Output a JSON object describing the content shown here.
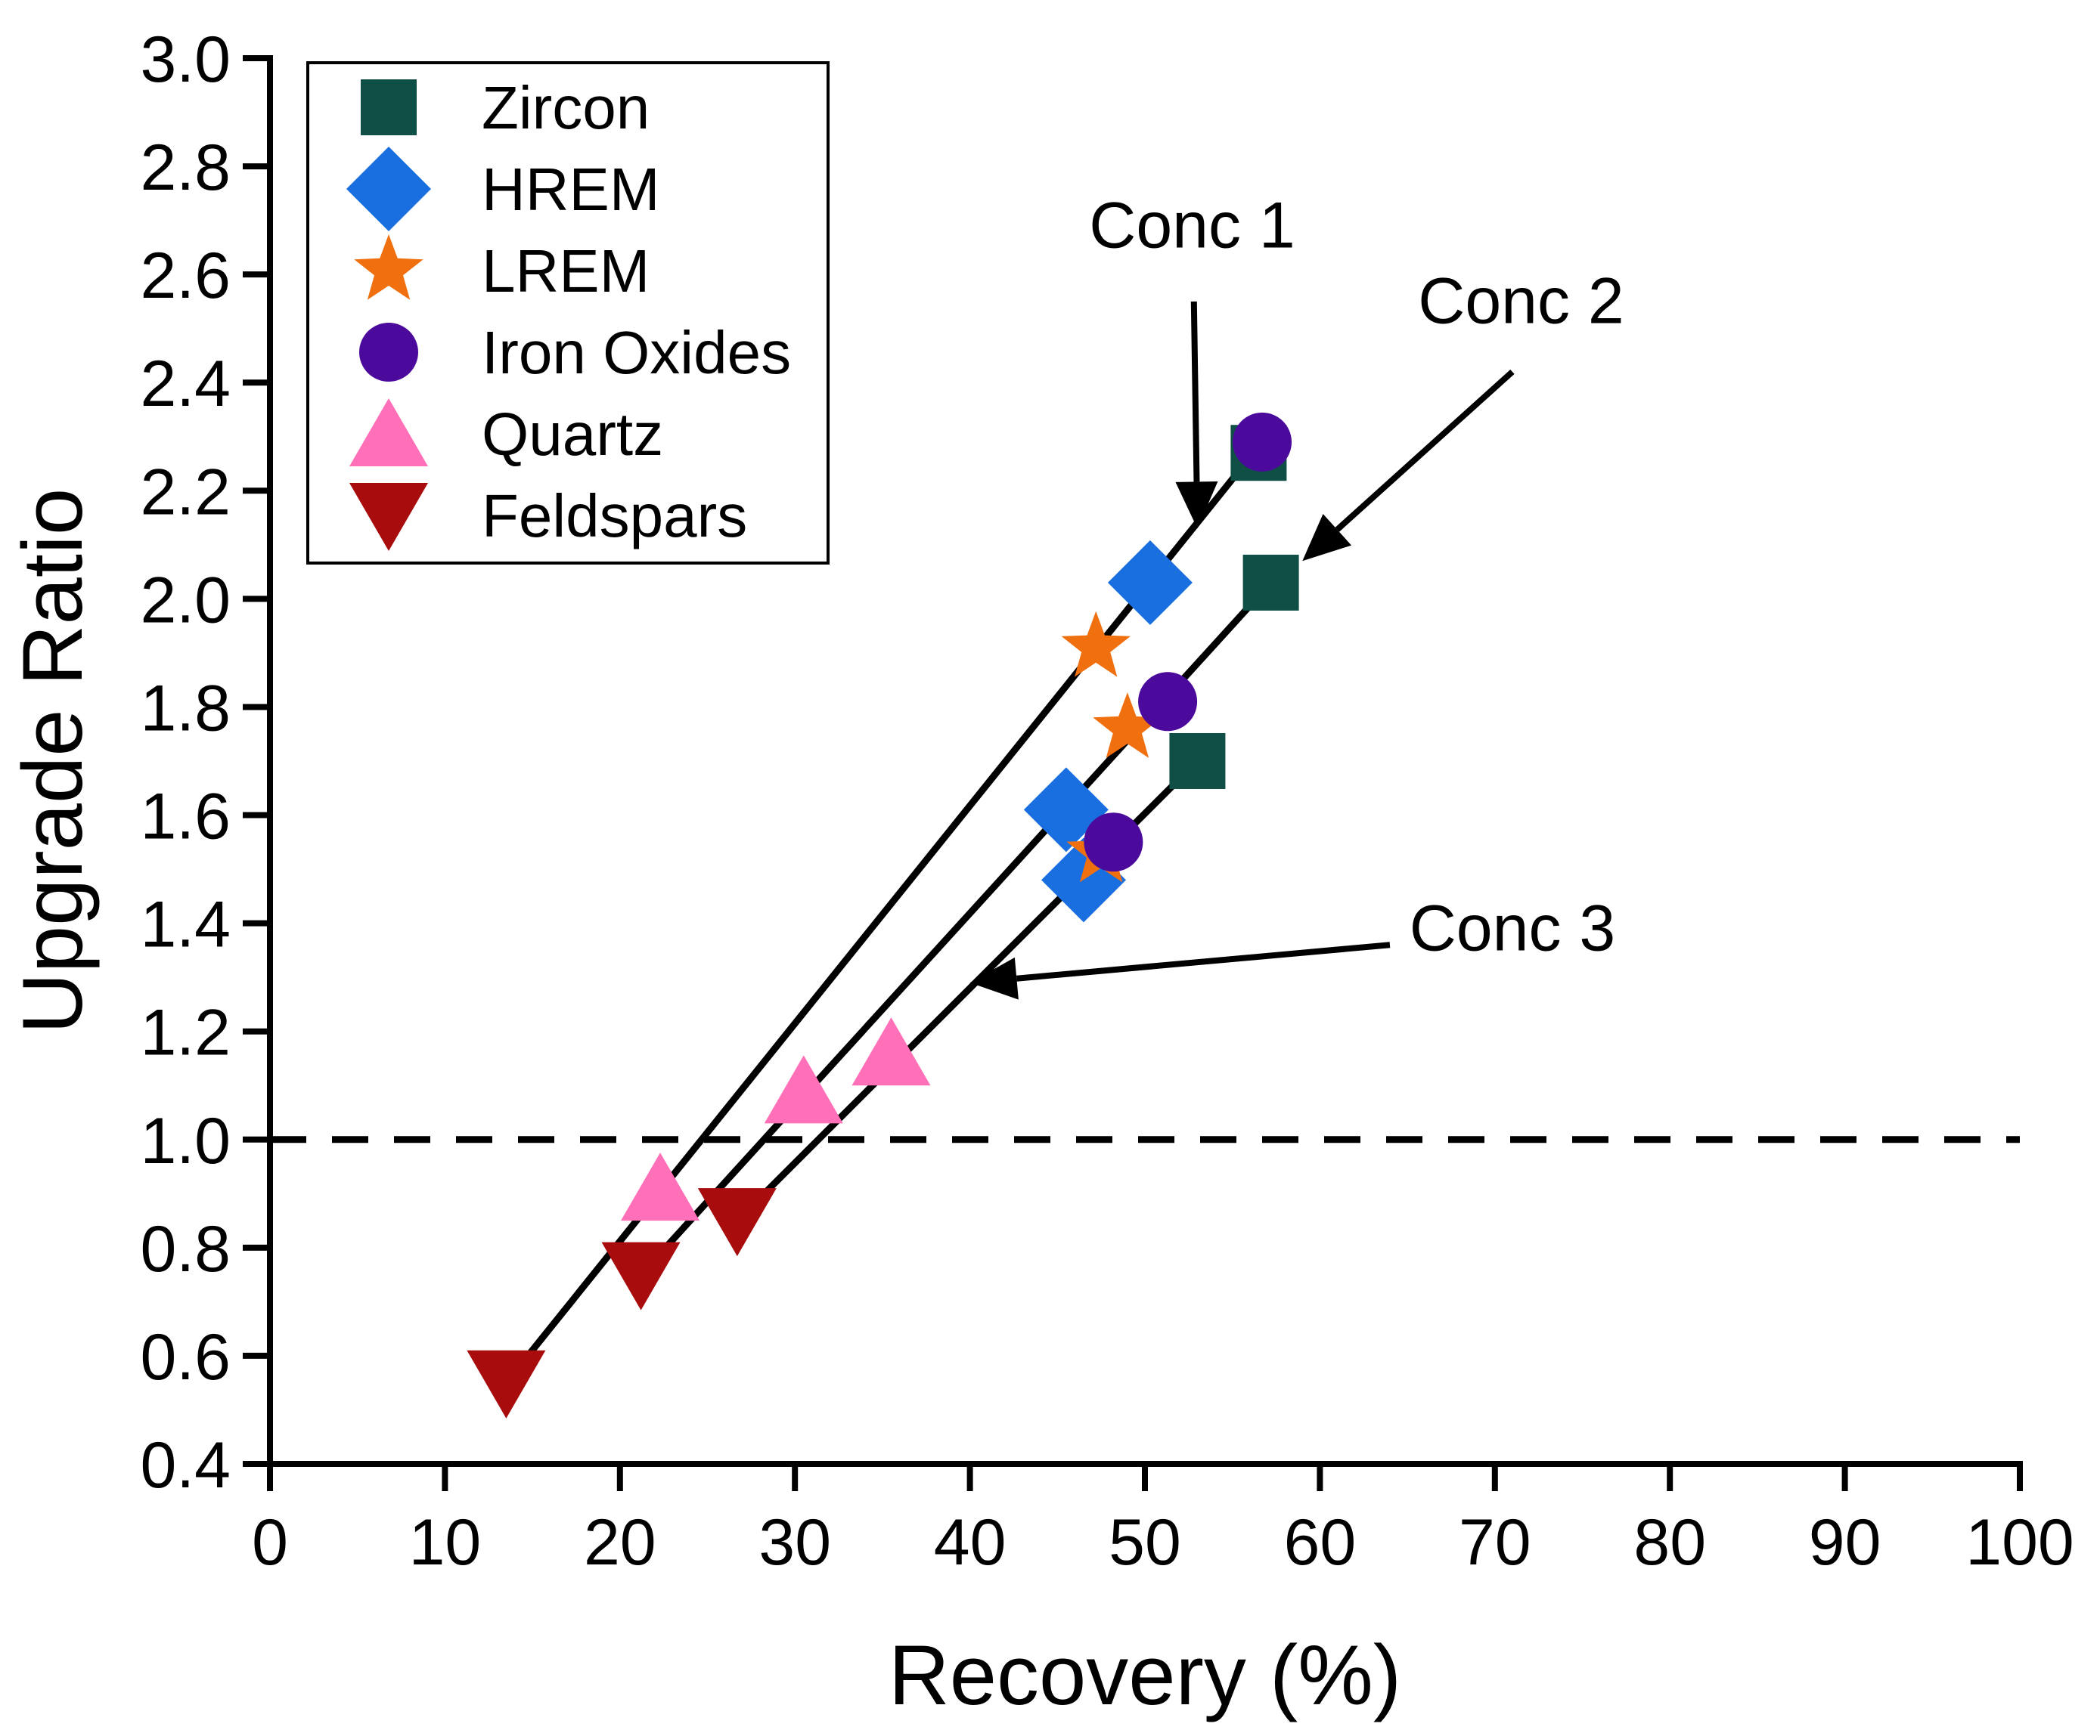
{
  "chart_data": {
    "type": "scatter",
    "xlabel": "Recovery (%)",
    "ylabel": "Upgrade Ratio",
    "xlim": [
      0,
      100
    ],
    "ylim": [
      0.4,
      3.0
    ],
    "xticks": [
      0,
      10,
      20,
      30,
      40,
      50,
      60,
      70,
      80,
      90,
      100
    ],
    "yticks": [
      0.4,
      0.6,
      0.8,
      1.0,
      1.2,
      1.4,
      1.6,
      1.8,
      2.0,
      2.2,
      2.4,
      2.6,
      2.8,
      3.0
    ],
    "xtick_labels": [
      "0",
      "10",
      "20",
      "30",
      "40",
      "50",
      "60",
      "70",
      "80",
      "90",
      "100"
    ],
    "ytick_labels": [
      "0.4",
      "0.6",
      "0.8",
      "1.0",
      "1.2",
      "1.4",
      "1.6",
      "1.8",
      "2.0",
      "2.2",
      "2.4",
      "2.6",
      "2.8",
      "3.0"
    ],
    "grid": false,
    "legend_position": "top-left",
    "reference_line": {
      "y": 1.0,
      "style": "dashed"
    },
    "series": [
      {
        "name": "Zircon",
        "marker": "square",
        "color": "#0f4f45",
        "points": [
          [
            56.5,
            2.27
          ],
          [
            57.2,
            2.03
          ],
          [
            53.0,
            1.7
          ]
        ]
      },
      {
        "name": "HREM",
        "marker": "diamond",
        "color": "#1a6fe0",
        "points": [
          [
            50.3,
            2.03
          ],
          [
            45.5,
            1.61
          ],
          [
            46.5,
            1.48
          ]
        ]
      },
      {
        "name": "LREM",
        "marker": "star",
        "color": "#f07010",
        "points": [
          [
            47.2,
            1.91
          ],
          [
            49.0,
            1.76
          ],
          [
            47.5,
            1.53
          ]
        ]
      },
      {
        "name": "Iron Oxides",
        "marker": "circle",
        "color": "#4b0a9c",
        "points": [
          [
            56.7,
            2.29
          ],
          [
            51.3,
            1.81
          ],
          [
            48.2,
            1.55
          ]
        ]
      },
      {
        "name": "Quartz",
        "marker": "triangle-up",
        "color": "#ff70b8",
        "points": [
          [
            22.3,
            0.91
          ],
          [
            30.5,
            1.09
          ],
          [
            35.5,
            1.16
          ]
        ]
      },
      {
        "name": "Feldspars",
        "marker": "triangle-down",
        "color": "#a80c0c",
        "points": [
          [
            13.5,
            0.55
          ],
          [
            21.2,
            0.75
          ],
          [
            26.7,
            0.85
          ]
        ]
      }
    ],
    "fit_lines": [
      {
        "x": [
          13.5,
          56.7
        ],
        "y": [
          0.55,
          2.29
        ]
      },
      {
        "x": [
          21.2,
          57.2
        ],
        "y": [
          0.75,
          2.03
        ]
      },
      {
        "x": [
          26.7,
          53.0
        ],
        "y": [
          0.85,
          1.7
        ]
      }
    ],
    "annotations": [
      {
        "text": "Conc 1",
        "label_at": [
          52.7,
          2.65
        ],
        "arrow_from": [
          52.8,
          2.55
        ],
        "arrow_to": [
          53.0,
          2.13
        ]
      },
      {
        "text": "Conc 2",
        "label_at": [
          71.5,
          2.51
        ],
        "arrow_from": [
          71.0,
          2.42
        ],
        "arrow_to": [
          59.0,
          2.07
        ]
      },
      {
        "text": "Conc 3",
        "label_at": [
          71.0,
          1.35
        ],
        "arrow_from": [
          64.0,
          1.36
        ],
        "arrow_to": [
          40.0,
          1.29
        ]
      }
    ]
  }
}
